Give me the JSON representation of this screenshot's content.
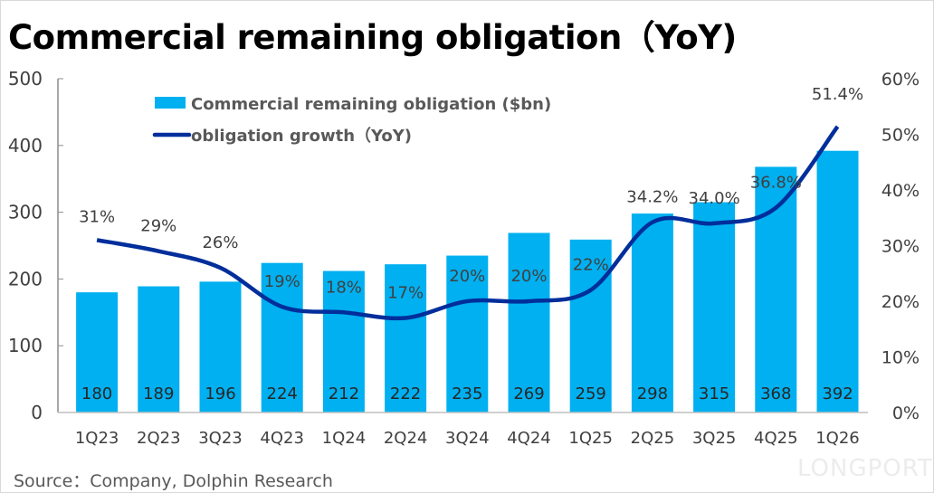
{
  "title": "Commercial remaining obligation（YoY)",
  "source": "Source：Company, Dolphin Research",
  "watermark": "LONGPORT",
  "chart_data": {
    "type": "bar+line",
    "title": "Commercial remaining obligation（YoY)",
    "categories": [
      "1Q23",
      "2Q23",
      "3Q23",
      "4Q23",
      "1Q24",
      "2Q24",
      "3Q24",
      "4Q24",
      "1Q25",
      "2Q25",
      "3Q25",
      "4Q25",
      "1Q26"
    ],
    "series": [
      {
        "name": "Commercial remaining obligation ($bn)",
        "type": "bar",
        "axis": "left",
        "color": "#00b0f0",
        "values": [
          180,
          189,
          196,
          224,
          212,
          222,
          235,
          269,
          259,
          298,
          315,
          368,
          392
        ],
        "labels": [
          "180",
          "189",
          "196",
          "224",
          "212",
          "222",
          "235",
          "269",
          "259",
          "298",
          "315",
          "368",
          "392"
        ]
      },
      {
        "name": "obligation growth（YoY)",
        "type": "line",
        "axis": "right",
        "color": "#002e9b",
        "values": [
          31,
          29,
          26,
          19,
          18,
          17,
          20,
          20,
          22,
          34.2,
          34.0,
          36.8,
          51.4
        ],
        "labels": [
          "31%",
          "29%",
          "26%",
          "19%",
          "18%",
          "17%",
          "20%",
          "20%",
          "22%",
          "34.2%",
          "34.0%",
          "36.8%",
          "51.4%"
        ]
      }
    ],
    "left_axis": {
      "ylim": [
        0,
        500
      ],
      "ticks": [
        "0",
        "100",
        "200",
        "300",
        "400",
        "500"
      ]
    },
    "right_axis": {
      "ylim": [
        0,
        60
      ],
      "ticks": [
        "0%",
        "10%",
        "20%",
        "30%",
        "40%",
        "50%",
        "60%"
      ]
    },
    "grid": false,
    "legend": "top-left"
  }
}
